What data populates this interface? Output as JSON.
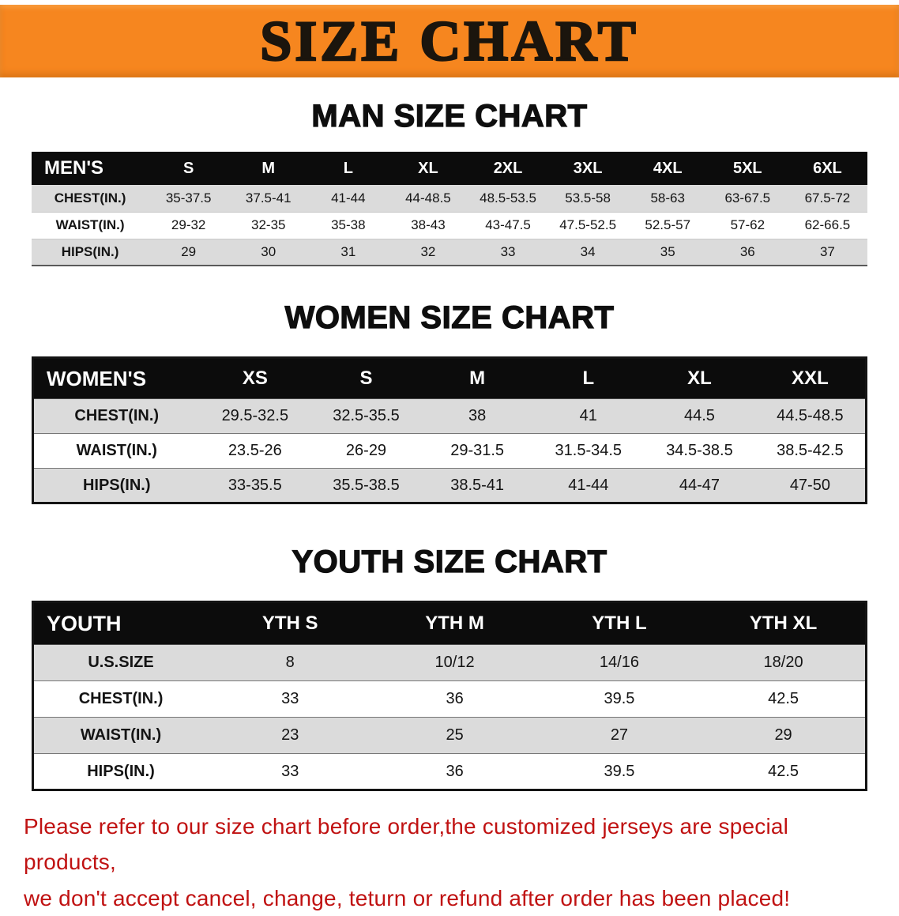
{
  "banner": {
    "title": "SIZE CHART"
  },
  "colors": {
    "banner_bg": "#F6861F",
    "table_header_bg": "#0C0C0C",
    "row_alt_gray": "#DBDBDB",
    "disclaimer_red": "#C01212"
  },
  "sections": [
    {
      "heading": "MAN SIZE CHART",
      "table": {
        "header": [
          "MEN'S",
          "S",
          "M",
          "L",
          "XL",
          "2XL",
          "3XL",
          "4XL",
          "5XL",
          "6XL"
        ],
        "rows": [
          [
            "CHEST(IN.)",
            "35-37.5",
            "37.5-41",
            "41-44",
            "44-48.5",
            "48.5-53.5",
            "53.5-58",
            "58-63",
            "63-67.5",
            "67.5-72"
          ],
          [
            "WAIST(IN.)",
            "29-32",
            "32-35",
            "35-38",
            "38-43",
            "43-47.5",
            "47.5-52.5",
            "52.5-57",
            "57-62",
            "62-66.5"
          ],
          [
            "HIPS(IN.)",
            "29",
            "30",
            "31",
            "32",
            "33",
            "34",
            "35",
            "36",
            "37"
          ]
        ]
      }
    },
    {
      "heading": "WOMEN SIZE CHART",
      "table": {
        "header": [
          "WOMEN'S",
          "XS",
          "S",
          "M",
          "L",
          "XL",
          "XXL"
        ],
        "rows": [
          [
            "CHEST(IN.)",
            "29.5-32.5",
            "32.5-35.5",
            "38",
            "41",
            "44.5",
            "44.5-48.5"
          ],
          [
            "WAIST(IN.)",
            "23.5-26",
            "26-29",
            "29-31.5",
            "31.5-34.5",
            "34.5-38.5",
            "38.5-42.5"
          ],
          [
            "HIPS(IN.)",
            "33-35.5",
            "35.5-38.5",
            "38.5-41",
            "41-44",
            "44-47",
            "47-50"
          ]
        ]
      }
    },
    {
      "heading": "YOUTH SIZE CHART",
      "table": {
        "header": [
          "YOUTH",
          "YTH S",
          "YTH M",
          "YTH L",
          "YTH XL"
        ],
        "rows": [
          [
            "U.S.SIZE",
            "8",
            "10/12",
            "14/16",
            "18/20"
          ],
          [
            "CHEST(IN.)",
            "33",
            "36",
            "39.5",
            "42.5"
          ],
          [
            "WAIST(IN.)",
            "23",
            "25",
            "27",
            "29"
          ],
          [
            "HIPS(IN.)",
            "33",
            "36",
            "39.5",
            "42.5"
          ]
        ]
      }
    }
  ],
  "disclaimer": {
    "line1": "Please refer to our size chart before order,the customized jerseys are special products,",
    "line2": "we don't accept cancel, change, teturn or refund after order has been placed!"
  }
}
